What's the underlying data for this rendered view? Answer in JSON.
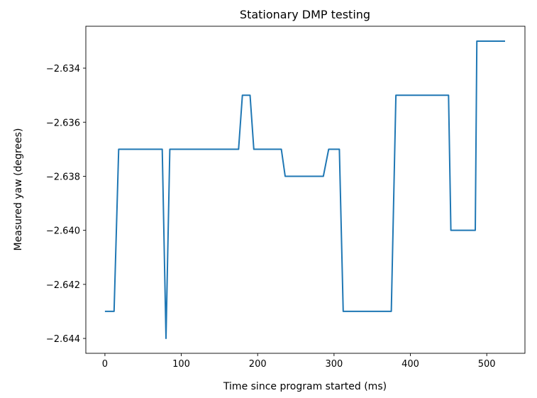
{
  "chart_data": {
    "type": "line",
    "title": "Stationary DMP testing",
    "xlabel": "Time since program started (ms)",
    "ylabel": "Measured yaw (degrees)",
    "xlim": [
      -25,
      550
    ],
    "ylim": [
      -2.64455,
      -2.63245
    ],
    "xticks": [
      0,
      100,
      200,
      300,
      400,
      500
    ],
    "xtick_labels": [
      "0",
      "100",
      "200",
      "300",
      "400",
      "500"
    ],
    "yticks": [
      -2.634,
      -2.636,
      -2.638,
      -2.64,
      -2.642,
      -2.644
    ],
    "ytick_labels": [
      "−2.634",
      "−2.636",
      "−2.638",
      "−2.640",
      "−2.642",
      "−2.644"
    ],
    "grid": false,
    "series": [
      {
        "color": "#1f77b4",
        "x": [
          0,
          12,
          18,
          75,
          80,
          85,
          175,
          180,
          190,
          195,
          231,
          236,
          286,
          293,
          307,
          312,
          375,
          381,
          450,
          453,
          485,
          487,
          524
        ],
        "y": [
          -2.643,
          -2.643,
          -2.637,
          -2.637,
          -2.644,
          -2.637,
          -2.637,
          -2.635,
          -2.635,
          -2.637,
          -2.637,
          -2.638,
          -2.638,
          -2.637,
          -2.637,
          -2.643,
          -2.643,
          -2.635,
          -2.635,
          -2.64,
          -2.64,
          -2.633,
          -2.633
        ]
      }
    ]
  }
}
